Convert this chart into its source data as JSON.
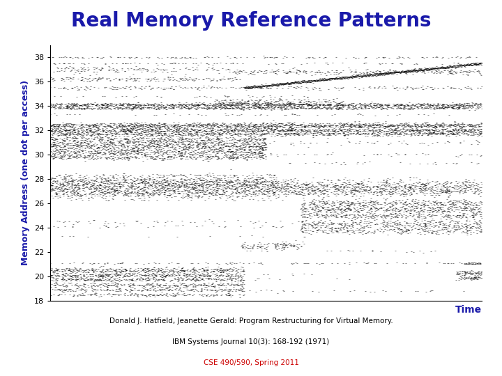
{
  "title": "Real Memory Reference Patterns",
  "title_color": "#1a1aaa",
  "title_fontsize": 20,
  "ylabel": "Memory Address (one dot per access)",
  "ylabel_color": "#1a1aaa",
  "xlabel": "Time",
  "xlabel_color": "#1a1aaa",
  "ylim": [
    18,
    39
  ],
  "yticks": [
    18,
    20,
    22,
    24,
    26,
    28,
    30,
    32,
    34,
    36,
    38
  ],
  "citation_line1": "Donald J. Hatfield, Jeanette Gerald: Program Restructuring for Virtual Memory.",
  "citation_line2": "IBM Systems Journal 10(3): 168-192 (1971)",
  "citation_line3": "CSE 490/590, Spring 2011",
  "citation_color": "#000000",
  "citation_color3": "#cc0000",
  "bg_color": "#ffffff",
  "plot_bg_color": "#ffffff",
  "seed": 42
}
